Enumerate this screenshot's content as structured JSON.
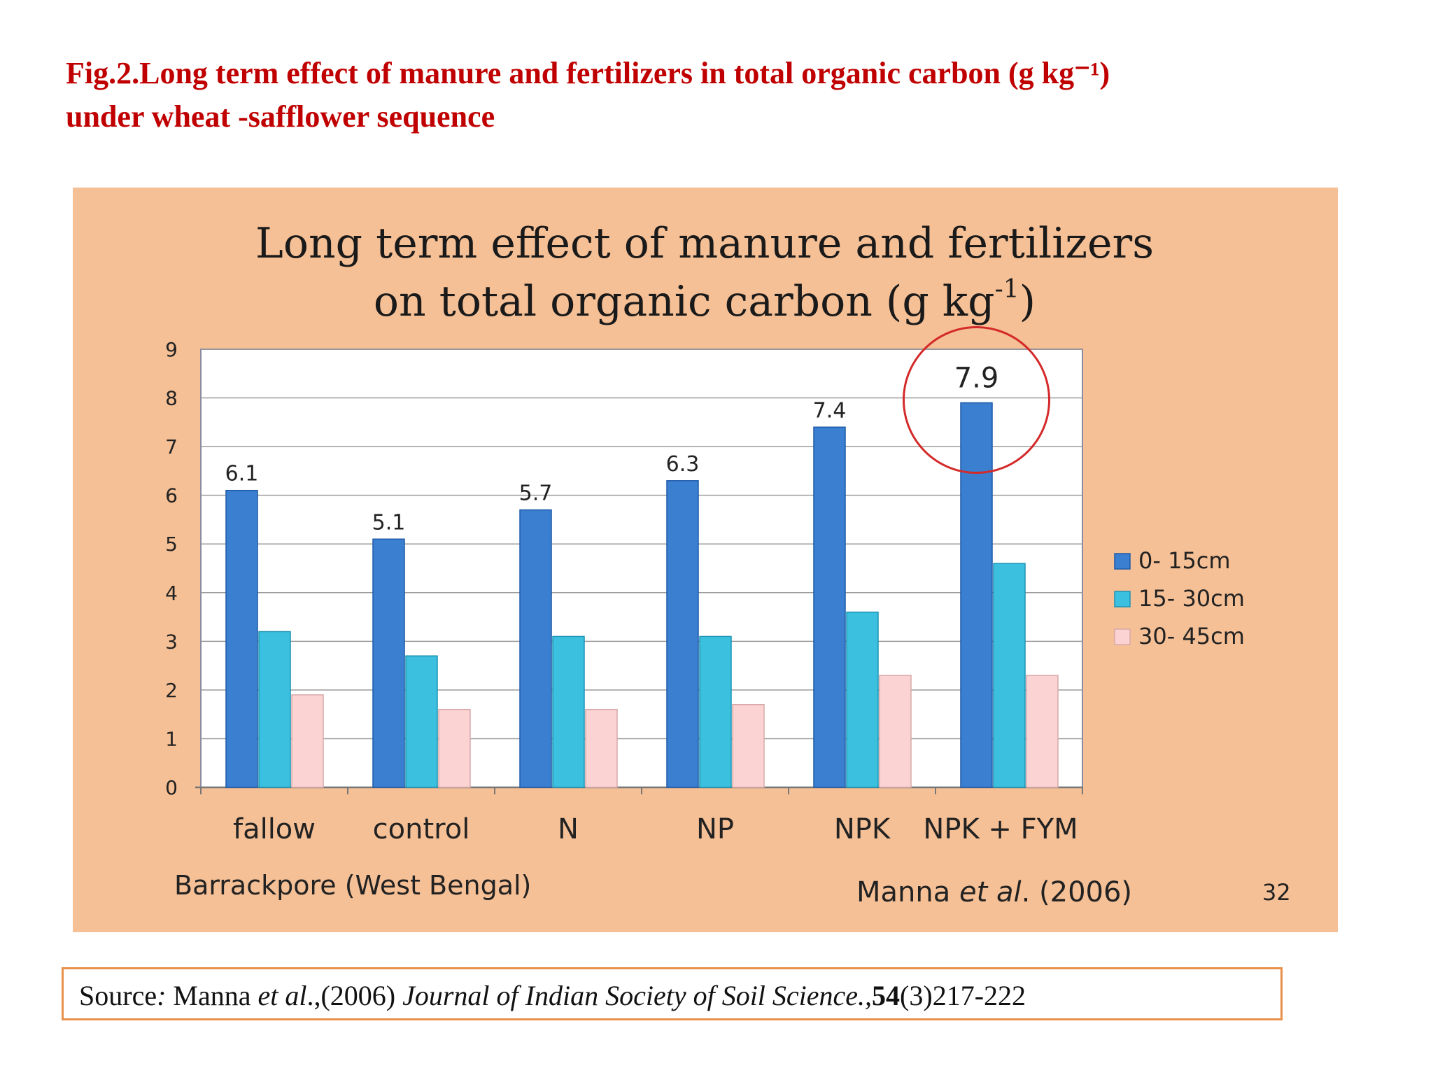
{
  "caption": {
    "line1": "Fig.2.Long term effect of manure and fertilizers in total organic carbon (g kg⁻¹)",
    "line2": "under wheat -safflower sequence"
  },
  "slide": {
    "title_line1": "Long term effect of manure and fertilizers",
    "title_line2_main": "on total organic carbon (g kg",
    "title_line2_sup": "-1",
    "title_line2_end": ")",
    "location": "Barrackpore (West Bengal)",
    "citation_author": "Manna ",
    "citation_etal": "et al",
    "citation_rest": ". (2006)",
    "slide_number": "32"
  },
  "source": {
    "prefix": "Source",
    "colon": ": ",
    "author": "Manna ",
    "etal": "et al",
    "year": ".,(2006) ",
    "journal": "Journal of Indian Society of Soil Science.,",
    "volume": "54",
    "pages": "(3)217-222"
  },
  "colors": {
    "series_0_15": "#3a7fd0",
    "series_15_30": "#3cc0e0",
    "series_30_45": "#fbd3d3",
    "highlight_circle": "#d42a2a",
    "slide_background": "#f6c096",
    "caption_red": "#c00000"
  },
  "chart_data": {
    "type": "bar",
    "title": "Long term effect of manure and fertilizers on total organic carbon (g kg-1)",
    "categories": [
      "fallow",
      "control",
      "N",
      "NP",
      "NPK",
      "NPK + FYM"
    ],
    "series": [
      {
        "name": "0- 15cm",
        "values": [
          6.1,
          5.1,
          5.7,
          6.3,
          7.4,
          7.9
        ]
      },
      {
        "name": "15- 30cm",
        "values": [
          3.2,
          2.7,
          3.1,
          3.1,
          3.6,
          4.6
        ]
      },
      {
        "name": "30- 45cm",
        "values": [
          1.9,
          1.6,
          1.6,
          1.7,
          2.3,
          2.3
        ]
      }
    ],
    "data_labels": [
      "6.1",
      "5.1",
      "5.7",
      "6.3",
      "7.4",
      "7.9"
    ],
    "y_ticks": [
      "0",
      "1",
      "2",
      "3",
      "4",
      "5",
      "6",
      "7",
      "8",
      "9"
    ],
    "ylim": [
      0,
      9
    ],
    "grid": true,
    "legend_position": "right",
    "highlighted_category": "NPK + FYM"
  }
}
